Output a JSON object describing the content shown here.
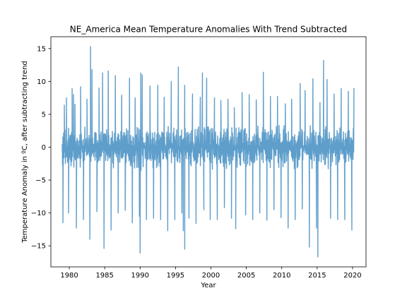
{
  "chart_data": {
    "type": "line",
    "title": "NE_America Mean Temperature Anomalies With Trend Subtracted",
    "xlabel": "Year",
    "ylabel": "Temperature Anomaly in ºC, after subtracting trend",
    "xlim": [
      1977.4,
      2021.9
    ],
    "ylim": [
      -18.2,
      16.8
    ],
    "x_ticks": [
      1980,
      1985,
      1990,
      1995,
      2000,
      2005,
      2010,
      2015,
      2020
    ],
    "y_ticks": [
      -15,
      -10,
      -5,
      0,
      5,
      10,
      15
    ],
    "grid": false,
    "legend": "none",
    "color": "#5f9ecb",
    "series": [
      {
        "x_range": [
          1979.0,
          2020.2
        ],
        "sampling": "daily",
        "points": [
          [
            1979.1,
            -11.5
          ],
          [
            1979.3,
            6.4
          ],
          [
            1979.6,
            7.5
          ],
          [
            1979.9,
            -10.0
          ],
          [
            1980.4,
            8.9
          ],
          [
            1980.6,
            8.0
          ],
          [
            1980.8,
            6.5
          ],
          [
            1981.0,
            -12.3
          ],
          [
            1981.6,
            9.2
          ],
          [
            1982.0,
            -11.0
          ],
          [
            1982.5,
            7.3
          ],
          [
            1982.9,
            -14.0
          ],
          [
            1983.0,
            15.3
          ],
          [
            1983.2,
            11.8
          ],
          [
            1983.9,
            -9.8
          ],
          [
            1984.2,
            9.0
          ],
          [
            1984.7,
            11.3
          ],
          [
            1984.9,
            -15.4
          ],
          [
            1985.5,
            11.6
          ],
          [
            1985.9,
            -12.6
          ],
          [
            1986.5,
            10.9
          ],
          [
            1986.9,
            -10.0
          ],
          [
            1987.4,
            7.9
          ],
          [
            1987.9,
            -9.6
          ],
          [
            1988.5,
            10.5
          ],
          [
            1988.9,
            -11.5
          ],
          [
            1989.3,
            7.5
          ],
          [
            1989.9,
            -10.5
          ],
          [
            1990.0,
            -16.1
          ],
          [
            1990.1,
            11.3
          ],
          [
            1990.3,
            11.0
          ],
          [
            1990.9,
            -11.0
          ],
          [
            1991.4,
            9.3
          ],
          [
            1991.9,
            -10.8
          ],
          [
            1992.5,
            9.4
          ],
          [
            1992.9,
            -11.0
          ],
          [
            1993.4,
            7.6
          ],
          [
            1993.9,
            -12.7
          ],
          [
            1994.4,
            10.0
          ],
          [
            1994.9,
            -11.0
          ],
          [
            1995.4,
            12.2
          ],
          [
            1995.9,
            -10.0
          ],
          [
            1996.1,
            -12.7
          ],
          [
            1996.3,
            9.4
          ],
          [
            1996.3,
            -15.5
          ],
          [
            1996.9,
            -10.8
          ],
          [
            1997.4,
            8.1
          ],
          [
            1997.9,
            -11.6
          ],
          [
            1998.5,
            7.6
          ],
          [
            1998.8,
            11.3
          ],
          [
            1999.0,
            -9.5
          ],
          [
            1999.4,
            10.5
          ],
          [
            1999.9,
            -11.0
          ],
          [
            2000.5,
            7.5
          ],
          [
            2000.9,
            -11.0
          ],
          [
            2001.4,
            7.1
          ],
          [
            2001.9,
            -9.2
          ],
          [
            2002.4,
            7.3
          ],
          [
            2002.9,
            -10.8
          ],
          [
            2003.3,
            6.0
          ],
          [
            2003.5,
            -12.4
          ],
          [
            2004.4,
            8.3
          ],
          [
            2004.9,
            -10.3
          ],
          [
            2005.4,
            8.0
          ],
          [
            2005.9,
            -11.0
          ],
          [
            2006.4,
            7.2
          ],
          [
            2006.9,
            -10.0
          ],
          [
            2007.4,
            11.4
          ],
          [
            2007.9,
            -11.1
          ],
          [
            2008.4,
            7.7
          ],
          [
            2008.9,
            -9.5
          ],
          [
            2009.4,
            7.7
          ],
          [
            2009.9,
            -10.7
          ],
          [
            2010.5,
            6.6
          ],
          [
            2010.9,
            -12.3
          ],
          [
            2011.4,
            7.3
          ],
          [
            2011.9,
            -11.0
          ],
          [
            2012.6,
            9.7
          ],
          [
            2012.9,
            -9.4
          ],
          [
            2013.3,
            8.6
          ],
          [
            2013.9,
            -15.2
          ],
          [
            2014.4,
            10.4
          ],
          [
            2014.9,
            -12.3
          ],
          [
            2015.1,
            -16.7
          ],
          [
            2015.4,
            6.8
          ],
          [
            2015.9,
            13.2
          ],
          [
            2016.4,
            10.3
          ],
          [
            2016.9,
            -10.8
          ],
          [
            2017.4,
            8.1
          ],
          [
            2017.9,
            -11.0
          ],
          [
            2018.4,
            8.9
          ],
          [
            2018.9,
            -11.0
          ],
          [
            2019.4,
            8.5
          ],
          [
            2019.9,
            -12.6
          ],
          [
            2020.2,
            9.0
          ]
        ],
        "typical_daily_range": [
          -5,
          5
        ]
      }
    ]
  }
}
